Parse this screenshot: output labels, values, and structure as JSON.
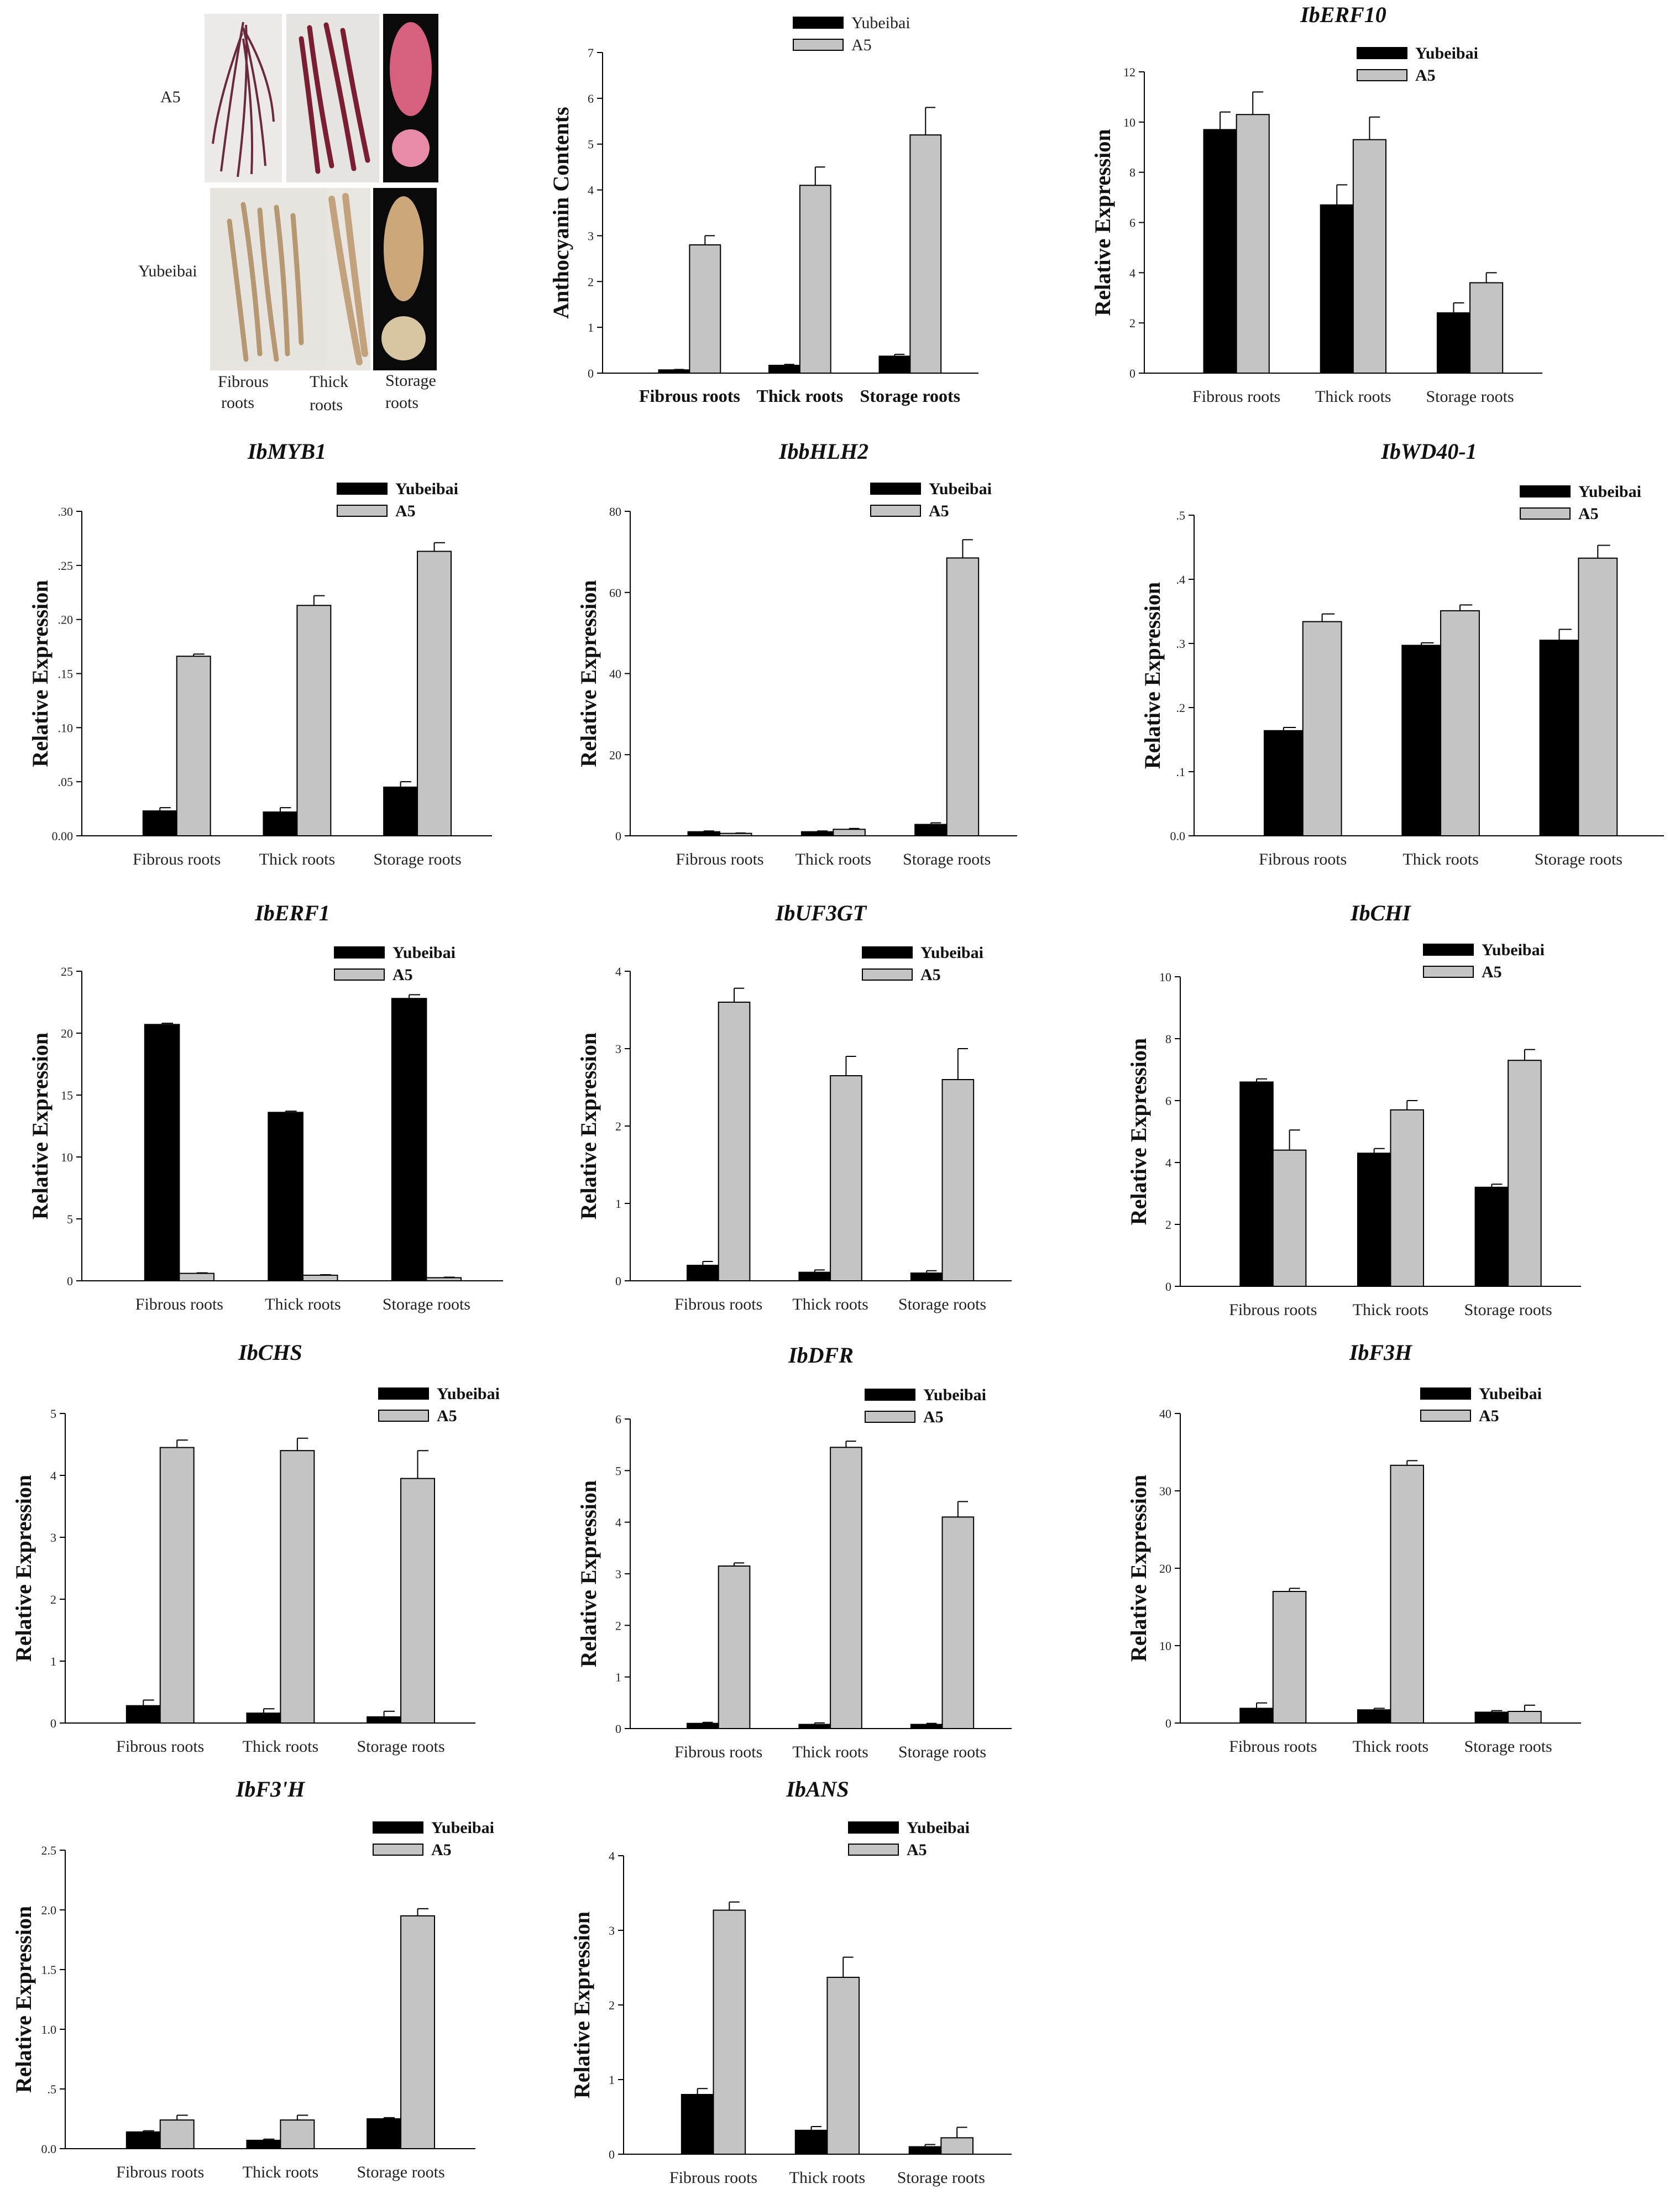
{
  "colors": {
    "Yubeibai": "#000000",
    "A5": "#c4c4c4",
    "axis": "#000000"
  },
  "series_names": [
    "Yubeibai",
    "A5"
  ],
  "photo_panel": {
    "row_labels": [
      "A5",
      "Yubeibai"
    ],
    "col_labels": [
      [
        "Fibrous",
        "roots"
      ],
      [
        "Thick",
        "roots"
      ],
      [
        "Storage",
        "roots"
      ]
    ]
  },
  "chart_data": [
    {
      "id": "anthocyanin",
      "type": "bar",
      "title": "",
      "ylabel": "Anthocyanin Contents",
      "categories": [
        "Fibrous roots",
        "Thick roots",
        "Storage roots"
      ],
      "series": [
        {
          "name": "Yubeibai",
          "values": [
            0.07,
            0.17,
            0.37
          ],
          "errors": [
            0.01,
            0.02,
            0.04
          ]
        },
        {
          "name": "A5",
          "values": [
            2.8,
            4.1,
            5.2
          ],
          "errors": [
            0.2,
            0.4,
            0.6
          ]
        }
      ],
      "ylim": [
        0,
        7
      ],
      "ticks": [
        "0",
        "1",
        "2",
        "3",
        "4",
        "5",
        "6",
        "7"
      ],
      "tickvals": [
        0,
        1,
        2,
        3,
        4,
        5,
        6,
        7
      ]
    },
    {
      "id": "IbERF10",
      "type": "bar",
      "title": "IbERF10",
      "ylabel": "Relative Expression",
      "categories": [
        "Fibrous roots",
        "Thick roots",
        "Storage roots"
      ],
      "series": [
        {
          "name": "Yubeibai",
          "values": [
            9.7,
            6.7,
            2.4
          ],
          "errors": [
            0.7,
            0.8,
            0.4
          ]
        },
        {
          "name": "A5",
          "values": [
            10.3,
            9.3,
            3.6
          ],
          "errors": [
            0.9,
            0.9,
            0.4
          ]
        }
      ],
      "ylim": [
        0,
        12
      ],
      "ticks": [
        "0",
        "2",
        "4",
        "6",
        "8",
        "10",
        "12"
      ],
      "tickvals": [
        0,
        2,
        4,
        6,
        8,
        10,
        12
      ]
    },
    {
      "id": "IbMYB1",
      "type": "bar",
      "title": "IbMYB1",
      "ylabel": "Relative Expression",
      "categories": [
        "Fibrous roots",
        "Thick roots",
        "Storage roots"
      ],
      "series": [
        {
          "name": "Yubeibai",
          "values": [
            0.023,
            0.022,
            0.045
          ],
          "errors": [
            0.003,
            0.004,
            0.005
          ]
        },
        {
          "name": "A5",
          "values": [
            0.166,
            0.213,
            0.263
          ],
          "errors": [
            0.002,
            0.009,
            0.008
          ]
        }
      ],
      "ylim": [
        0,
        0.3
      ],
      "ticks": [
        "0.00",
        ".05",
        ".10",
        ".15",
        ".20",
        ".25",
        ".30"
      ],
      "tickvals": [
        0,
        0.05,
        0.1,
        0.15,
        0.2,
        0.25,
        0.3
      ]
    },
    {
      "id": "IbbHLH2",
      "type": "bar",
      "title": "IbbHLH2",
      "ylabel": "Relative Expression",
      "categories": [
        "Fibrous roots",
        "Thick roots",
        "Storage roots"
      ],
      "series": [
        {
          "name": "Yubeibai",
          "values": [
            1.0,
            1.0,
            2.8
          ],
          "errors": [
            0.2,
            0.2,
            0.4
          ]
        },
        {
          "name": "A5",
          "values": [
            0.6,
            1.6,
            68.5
          ],
          "errors": [
            0.1,
            0.2,
            4.5
          ]
        }
      ],
      "ylim": [
        0,
        80
      ],
      "ticks": [
        "0",
        "20",
        "40",
        "60",
        "80"
      ],
      "tickvals": [
        0,
        20,
        40,
        60,
        80
      ]
    },
    {
      "id": "IbWD40-1",
      "type": "bar",
      "title": "IbWD40-1",
      "ylabel": "Relative Expression",
      "categories": [
        "Fibrous roots",
        "Thick roots",
        "Storage roots"
      ],
      "series": [
        {
          "name": "Yubeibai",
          "values": [
            0.164,
            0.297,
            0.305
          ],
          "errors": [
            0.005,
            0.004,
            0.017
          ]
        },
        {
          "name": "A5",
          "values": [
            0.334,
            0.351,
            0.433
          ],
          "errors": [
            0.012,
            0.009,
            0.02
          ]
        }
      ],
      "ylim": [
        0,
        0.5
      ],
      "ticks": [
        "0.0",
        ".1",
        ".2",
        ".3",
        ".4",
        ".5"
      ],
      "tickvals": [
        0,
        0.1,
        0.2,
        0.3,
        0.4,
        0.5
      ]
    },
    {
      "id": "IbERF1",
      "type": "bar",
      "title": "IbERF1",
      "ylabel": "Relative Expression",
      "categories": [
        "Fibrous roots",
        "Thick roots",
        "Storage roots"
      ],
      "series": [
        {
          "name": "Yubeibai",
          "values": [
            20.7,
            13.6,
            22.8
          ],
          "errors": [
            0.1,
            0.1,
            0.3
          ]
        },
        {
          "name": "A5",
          "values": [
            0.6,
            0.45,
            0.25
          ],
          "errors": [
            0.04,
            0.04,
            0.04
          ]
        }
      ],
      "ylim": [
        0,
        25
      ],
      "ticks": [
        "0",
        "5",
        "10",
        "15",
        "20",
        "25"
      ],
      "tickvals": [
        0,
        5,
        10,
        15,
        20,
        25
      ]
    },
    {
      "id": "IbUF3GT",
      "type": "bar",
      "title": "IbUF3GT",
      "ylabel": "Relative Expression",
      "categories": [
        "Fibrous roots",
        "Thick roots",
        "Storage roots"
      ],
      "series": [
        {
          "name": "Yubeibai",
          "values": [
            0.2,
            0.11,
            0.1
          ],
          "errors": [
            0.05,
            0.03,
            0.03
          ]
        },
        {
          "name": "A5",
          "values": [
            3.6,
            2.65,
            2.6
          ],
          "errors": [
            0.18,
            0.25,
            0.4
          ]
        }
      ],
      "ylim": [
        0,
        4
      ],
      "ticks": [
        "0",
        "1",
        "2",
        "3",
        "4"
      ],
      "tickvals": [
        0,
        1,
        2,
        3,
        4
      ]
    },
    {
      "id": "IbCHI",
      "type": "bar",
      "title": "IbCHI",
      "ylabel": "Relative Expression",
      "categories": [
        "Fibrous roots",
        "Thick roots",
        "Storage roots"
      ],
      "series": [
        {
          "name": "Yubeibai",
          "values": [
            6.6,
            4.3,
            3.2
          ],
          "errors": [
            0.1,
            0.15,
            0.1
          ]
        },
        {
          "name": "A5",
          "values": [
            4.4,
            5.7,
            7.3
          ],
          "errors": [
            0.65,
            0.3,
            0.35
          ]
        }
      ],
      "ylim": [
        0,
        10
      ],
      "ticks": [
        "0",
        "2",
        "4",
        "6",
        "8",
        "10"
      ],
      "tickvals": [
        0,
        2,
        4,
        6,
        8,
        10
      ]
    },
    {
      "id": "IbCHS",
      "type": "bar",
      "title": "IbCHS",
      "ylabel": "Relative Expression",
      "categories": [
        "Fibrous roots",
        "Thick roots",
        "Storage roots"
      ],
      "series": [
        {
          "name": "Yubeibai",
          "values": [
            0.28,
            0.16,
            0.1
          ],
          "errors": [
            0.09,
            0.07,
            0.09
          ]
        },
        {
          "name": "A5",
          "values": [
            4.45,
            4.4,
            3.95
          ],
          "errors": [
            0.12,
            0.2,
            0.45
          ]
        }
      ],
      "ylim": [
        0,
        5
      ],
      "ticks": [
        "0",
        "1",
        "2",
        "3",
        "4",
        "5"
      ],
      "tickvals": [
        0,
        1,
        2,
        3,
        4,
        5
      ]
    },
    {
      "id": "IbDFR",
      "type": "bar",
      "title": "IbDFR",
      "ylabel": "Relative Expression",
      "categories": [
        "Fibrous roots",
        "Thick roots",
        "Storage roots"
      ],
      "series": [
        {
          "name": "Yubeibai",
          "values": [
            0.1,
            0.08,
            0.08
          ],
          "errors": [
            0.02,
            0.03,
            0.02
          ]
        },
        {
          "name": "A5",
          "values": [
            3.15,
            5.45,
            4.1
          ],
          "errors": [
            0.06,
            0.12,
            0.3
          ]
        }
      ],
      "ylim": [
        0,
        6
      ],
      "ticks": [
        "0",
        "1",
        "2",
        "3",
        "4",
        "5",
        "6"
      ],
      "tickvals": [
        0,
        1,
        2,
        3,
        4,
        5,
        6
      ]
    },
    {
      "id": "IbF3H",
      "type": "bar",
      "title": "IbF3H",
      "ylabel": "Relative Expression",
      "categories": [
        "Fibrous roots",
        "Thick roots",
        "Storage roots"
      ],
      "series": [
        {
          "name": "Yubeibai",
          "values": [
            1.9,
            1.7,
            1.4
          ],
          "errors": [
            0.7,
            0.2,
            0.2
          ]
        },
        {
          "name": "A5",
          "values": [
            17.0,
            33.3,
            1.5
          ],
          "errors": [
            0.4,
            0.6,
            0.8
          ]
        }
      ],
      "ylim": [
        0,
        40
      ],
      "ticks": [
        "0",
        "10",
        "20",
        "30",
        "40"
      ],
      "tickvals": [
        0,
        10,
        20,
        30,
        40
      ]
    },
    {
      "id": "IbF3'H",
      "type": "bar",
      "title": "IbF3'H",
      "ylabel": "Relative Expression",
      "categories": [
        "Fibrous roots",
        "Thick roots",
        "Storage roots"
      ],
      "series": [
        {
          "name": "Yubeibai",
          "values": [
            0.14,
            0.07,
            0.25
          ],
          "errors": [
            0.01,
            0.01,
            0.01
          ]
        },
        {
          "name": "A5",
          "values": [
            0.24,
            0.24,
            1.95
          ],
          "errors": [
            0.04,
            0.04,
            0.06
          ]
        }
      ],
      "ylim": [
        0,
        2.5
      ],
      "ticks": [
        "0.0",
        ".5",
        "1.0",
        "1.5",
        "2.0",
        "2.5"
      ],
      "tickvals": [
        0,
        0.5,
        1,
        1.5,
        2,
        2.5
      ]
    },
    {
      "id": "IbANS",
      "type": "bar",
      "title": "IbANS",
      "ylabel": "Relative Expression",
      "categories": [
        "Fibrous roots",
        "Thick roots",
        "Storage roots"
      ],
      "series": [
        {
          "name": "Yubeibai",
          "values": [
            0.8,
            0.32,
            0.1
          ],
          "errors": [
            0.08,
            0.05,
            0.03
          ]
        },
        {
          "name": "A5",
          "values": [
            3.27,
            2.37,
            0.22
          ],
          "errors": [
            0.11,
            0.27,
            0.14
          ]
        }
      ],
      "ylim": [
        0,
        4
      ],
      "ticks": [
        "0",
        "1",
        "2",
        "3",
        "4"
      ],
      "tickvals": [
        0,
        1,
        2,
        3,
        4
      ]
    }
  ]
}
